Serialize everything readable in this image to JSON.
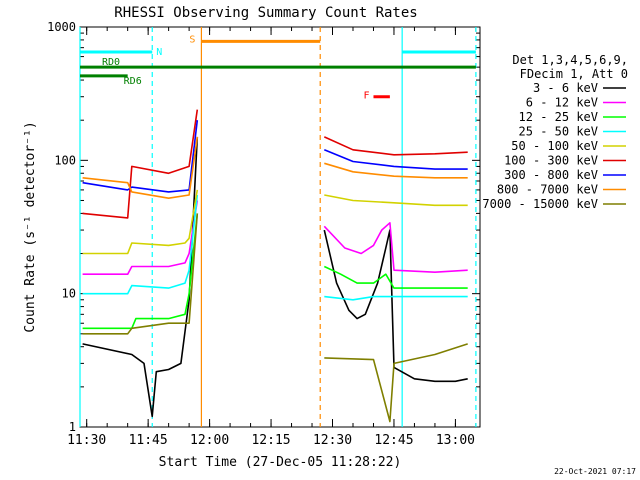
{
  "chart_data": {
    "type": "line",
    "title": "RHESSI Observing Summary Count Rates",
    "xlabel": "Start Time (27-Dec-05 11:28:22)",
    "ylabel": "Count Rate (s⁻¹ detector⁻¹)",
    "yscale": "log",
    "xlim": [
      "11:28:22",
      "13:06:00"
    ],
    "ylim": [
      1,
      1000
    ],
    "x_ticks": [
      "11:30",
      "11:45",
      "12:00",
      "12:15",
      "12:30",
      "12:45",
      "13:00"
    ],
    "y_ticks": [
      "1",
      "10",
      "100",
      "1000"
    ],
    "legend": {
      "header1": "Det 1,3,4,5,6,9,",
      "header2": "FDecim 1, Att 0",
      "placement": "right"
    },
    "series": [
      {
        "name": "3 - 6 keV",
        "color": "#000000",
        "points": [
          [
            "11:29",
            4.2
          ],
          [
            "11:41",
            3.5
          ],
          [
            "11:44",
            3.0
          ],
          [
            "11:46",
            1.2
          ],
          [
            "11:47",
            2.6
          ],
          [
            "11:50",
            2.7
          ],
          [
            "11:53",
            3.0
          ],
          [
            "11:55",
            9.0
          ],
          [
            "11:57",
            150
          ],
          [
            "12:28",
            30
          ],
          [
            "12:31",
            12
          ],
          [
            "12:34",
            7.5
          ],
          [
            "12:36",
            6.5
          ],
          [
            "12:38",
            7.0
          ],
          [
            "12:41",
            12
          ],
          [
            "12:43",
            22
          ],
          [
            "12:44",
            30
          ],
          [
            "12:45",
            2.8
          ],
          [
            "12:50",
            2.3
          ],
          [
            "12:55",
            2.2
          ],
          [
            "13:00",
            2.2
          ],
          [
            "13:03",
            2.3
          ]
        ]
      },
      {
        "name": "6 - 12 keV",
        "color": "#ff00ff",
        "points": [
          [
            "11:29",
            14
          ],
          [
            "11:40",
            14
          ],
          [
            "11:41",
            16
          ],
          [
            "11:50",
            16
          ],
          [
            "11:54",
            17
          ],
          [
            "11:55",
            20
          ],
          [
            "11:57",
            50
          ],
          [
            "12:28",
            32
          ],
          [
            "12:33",
            22
          ],
          [
            "12:37",
            20
          ],
          [
            "12:40",
            23
          ],
          [
            "12:42",
            30
          ],
          [
            "12:44",
            34
          ],
          [
            "12:45",
            15
          ],
          [
            "12:55",
            14.5
          ],
          [
            "13:03",
            15
          ]
        ]
      },
      {
        "name": "12 - 25 keV",
        "color": "#00ff00",
        "points": [
          [
            "11:29",
            5.5
          ],
          [
            "11:41",
            5.5
          ],
          [
            "11:42",
            6.5
          ],
          [
            "11:50",
            6.5
          ],
          [
            "11:54",
            7.0
          ],
          [
            "11:55",
            10
          ],
          [
            "11:57",
            40
          ],
          [
            "12:28",
            16
          ],
          [
            "12:32",
            14
          ],
          [
            "12:36",
            12
          ],
          [
            "12:40",
            12
          ],
          [
            "12:43",
            14
          ],
          [
            "12:45",
            11
          ],
          [
            "12:55",
            11
          ],
          [
            "13:03",
            11
          ]
        ]
      },
      {
        "name": "25 - 50 keV",
        "color": "#00ffff",
        "points": [
          [
            "11:29",
            10
          ],
          [
            "11:40",
            10
          ],
          [
            "11:41",
            11.5
          ],
          [
            "11:50",
            11
          ],
          [
            "11:54",
            12
          ],
          [
            "11:55",
            15
          ],
          [
            "11:57",
            55
          ],
          [
            "12:28",
            9.5
          ],
          [
            "12:35",
            9.0
          ],
          [
            "12:40",
            9.5
          ],
          [
            "12:45",
            9.5
          ],
          [
            "12:55",
            9.5
          ],
          [
            "13:03",
            9.5
          ]
        ]
      },
      {
        "name": "50 - 100 keV",
        "color": "#d2d200",
        "points": [
          [
            "11:29",
            20
          ],
          [
            "11:40",
            20
          ],
          [
            "11:41",
            24
          ],
          [
            "11:50",
            23
          ],
          [
            "11:54",
            24
          ],
          [
            "11:55",
            26
          ],
          [
            "11:57",
            60
          ],
          [
            "12:28",
            55
          ],
          [
            "12:35",
            50
          ],
          [
            "12:45",
            48
          ],
          [
            "12:55",
            46
          ],
          [
            "13:03",
            46
          ]
        ]
      },
      {
        "name": "100 - 300 keV",
        "color": "#e00000",
        "points": [
          [
            "11:29",
            40
          ],
          [
            "11:40",
            37
          ],
          [
            "11:41",
            90
          ],
          [
            "11:50",
            80
          ],
          [
            "11:55",
            90
          ],
          [
            "11:57",
            240
          ],
          [
            "12:28",
            150
          ],
          [
            "12:35",
            120
          ],
          [
            "12:45",
            110
          ],
          [
            "12:55",
            112
          ],
          [
            "13:03",
            115
          ]
        ]
      },
      {
        "name": "300 - 800 keV",
        "color": "#0000ff",
        "points": [
          [
            "11:29",
            68
          ],
          [
            "11:40",
            60
          ],
          [
            "11:41",
            63
          ],
          [
            "11:50",
            58
          ],
          [
            "11:55",
            60
          ],
          [
            "11:57",
            200
          ],
          [
            "12:28",
            120
          ],
          [
            "12:35",
            98
          ],
          [
            "12:45",
            90
          ],
          [
            "12:55",
            86
          ],
          [
            "13:03",
            86
          ]
        ]
      },
      {
        "name": "800 - 7000 keV",
        "color": "#ff8c00",
        "points": [
          [
            "11:29",
            74
          ],
          [
            "11:40",
            68
          ],
          [
            "11:41",
            58
          ],
          [
            "11:50",
            52
          ],
          [
            "11:55",
            55
          ],
          [
            "11:57",
            150
          ],
          [
            "12:28",
            95
          ],
          [
            "12:35",
            82
          ],
          [
            "12:45",
            76
          ],
          [
            "12:55",
            74
          ],
          [
            "13:03",
            74
          ]
        ]
      },
      {
        "name": "7000 - 15000 keV",
        "color": "#7f7f00",
        "points": [
          [
            "11:29",
            5.0
          ],
          [
            "11:40",
            5.0
          ],
          [
            "11:41",
            5.5
          ],
          [
            "11:50",
            6.0
          ],
          [
            "11:55",
            6.0
          ],
          [
            "11:57",
            40
          ],
          [
            "12:28",
            3.3
          ],
          [
            "12:40",
            3.2
          ],
          [
            "12:44",
            1.1
          ],
          [
            "12:45",
            3.0
          ],
          [
            "12:55",
            3.5
          ],
          [
            "13:03",
            4.2
          ]
        ]
      }
    ],
    "annotations": [
      {
        "text": "N",
        "color": "#00ffff"
      },
      {
        "text": "S",
        "color": "#ff8c00"
      },
      {
        "text": "F",
        "color": "#ff0000"
      },
      {
        "text": "RD0",
        "color": "#008000"
      },
      {
        "text": "RD6",
        "color": "#008000"
      }
    ],
    "flag_bars": [
      {
        "label": "N",
        "color": "#00ffff",
        "level": 650,
        "segments": [
          [
            "11:28:22",
            "11:46"
          ],
          [
            "12:47",
            "13:05"
          ]
        ]
      },
      {
        "label": "S",
        "color": "#ff8c00",
        "level": 780,
        "segments": [
          [
            "11:58",
            "12:27"
          ]
        ]
      },
      {
        "label": "F",
        "color": "#ff0000",
        "level": 300,
        "segments": [
          [
            "12:40",
            "12:44"
          ]
        ]
      },
      {
        "label": "RD0",
        "color": "#008000",
        "level": 500,
        "segments": [
          [
            "11:28:22",
            "13:05"
          ]
        ]
      },
      {
        "label": "RD6",
        "color": "#008000",
        "level": 430,
        "segments": [
          [
            "11:28:22",
            "11:40"
          ]
        ]
      }
    ],
    "vertical_lines": [
      {
        "time": "11:28:22",
        "color": "#00ffff",
        "style": "solid"
      },
      {
        "time": "11:46",
        "color": "#00ffff",
        "style": "dashed"
      },
      {
        "time": "11:58",
        "color": "#ff8c00",
        "style": "solid"
      },
      {
        "time": "12:27",
        "color": "#ff8c00",
        "style": "dashed"
      },
      {
        "time": "12:47",
        "color": "#00ffff",
        "style": "solid"
      },
      {
        "time": "13:05",
        "color": "#00ffff",
        "style": "dashed"
      }
    ]
  },
  "footer": {
    "timestamp": "22-Oct-2021 07:17"
  }
}
